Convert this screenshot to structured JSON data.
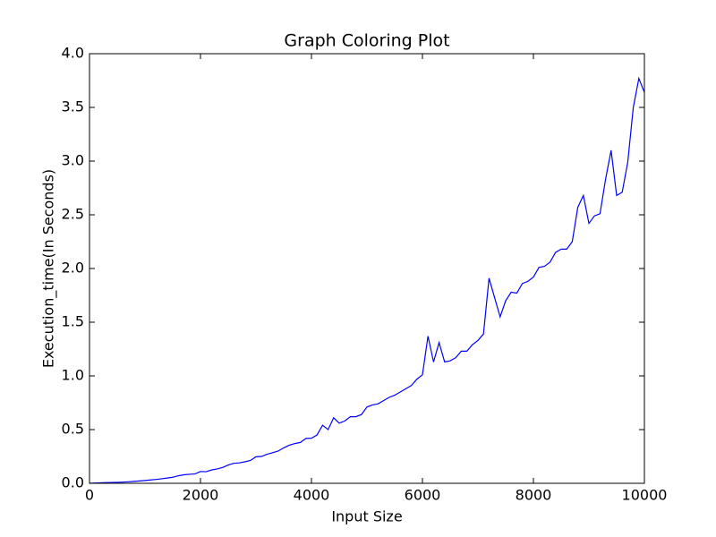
{
  "chart_data": {
    "type": "line",
    "title": "Graph Coloring Plot",
    "x_label": "Input Size",
    "y_label": "Execution_time(In Seconds)",
    "x": [
      0,
      100,
      200,
      300,
      400,
      500,
      600,
      700,
      800,
      900,
      1000,
      1100,
      1200,
      1300,
      1400,
      1500,
      1600,
      1700,
      1800,
      1900,
      2000,
      2100,
      2200,
      2300,
      2400,
      2500,
      2600,
      2700,
      2800,
      2900,
      3000,
      3100,
      3200,
      3300,
      3400,
      3500,
      3600,
      3700,
      3800,
      3900,
      4000,
      4100,
      4200,
      4300,
      4400,
      4500,
      4600,
      4700,
      4800,
      4900,
      5000,
      5100,
      5200,
      5300,
      5400,
      5500,
      5600,
      5700,
      5800,
      5900,
      6000,
      6100,
      6200,
      6300,
      6400,
      6500,
      6600,
      6700,
      6800,
      6900,
      7000,
      7100,
      7200,
      7300,
      7400,
      7500,
      7600,
      7700,
      7800,
      7900,
      8000,
      8100,
      8200,
      8300,
      8400,
      8500,
      8600,
      8700,
      8800,
      8900,
      9000,
      9100,
      9200,
      9300,
      9400,
      9500,
      9600,
      9700,
      9800,
      9900,
      10000
    ],
    "series": [
      {
        "name": "Execution time",
        "color": "#0000ff",
        "values": [
          0.0,
          0.002,
          0.004,
          0.006,
          0.008,
          0.009,
          0.011,
          0.014,
          0.018,
          0.022,
          0.026,
          0.031,
          0.036,
          0.042,
          0.049,
          0.056,
          0.07,
          0.079,
          0.084,
          0.087,
          0.11,
          0.108,
          0.124,
          0.134,
          0.147,
          0.17,
          0.186,
          0.19,
          0.2,
          0.213,
          0.247,
          0.25,
          0.27,
          0.285,
          0.3,
          0.33,
          0.355,
          0.37,
          0.38,
          0.418,
          0.42,
          0.45,
          0.54,
          0.5,
          0.61,
          0.56,
          0.58,
          0.62,
          0.62,
          0.64,
          0.71,
          0.73,
          0.74,
          0.77,
          0.8,
          0.82,
          0.85,
          0.88,
          0.91,
          0.97,
          1.01,
          1.37,
          1.13,
          1.31,
          1.13,
          1.14,
          1.17,
          1.23,
          1.23,
          1.29,
          1.33,
          1.39,
          1.91,
          1.73,
          1.55,
          1.7,
          1.78,
          1.77,
          1.86,
          1.88,
          1.92,
          2.01,
          2.02,
          2.06,
          2.15,
          2.18,
          2.18,
          2.25,
          2.57,
          2.68,
          2.42,
          2.49,
          2.51,
          2.83,
          3.1,
          2.68,
          2.71,
          2.99,
          3.5,
          3.77,
          3.64
        ]
      }
    ],
    "xlim": [
      0,
      10000
    ],
    "ylim": [
      0,
      4.0
    ],
    "xticks": [
      0,
      2000,
      4000,
      6000,
      8000,
      10000
    ],
    "yticks": [
      {
        "value": 0,
        "label": "0.0"
      },
      {
        "value": 0.5,
        "label": "0.5"
      },
      {
        "value": 1,
        "label": "1.0"
      },
      {
        "value": 1.5,
        "label": "1.5"
      },
      {
        "value": 2,
        "label": "2.0"
      },
      {
        "value": 2.5,
        "label": "2.5"
      },
      {
        "value": 3,
        "label": "3.0"
      },
      {
        "value": 3.5,
        "label": "3.5"
      },
      {
        "value": 4,
        "label": "4.0"
      }
    ]
  }
}
